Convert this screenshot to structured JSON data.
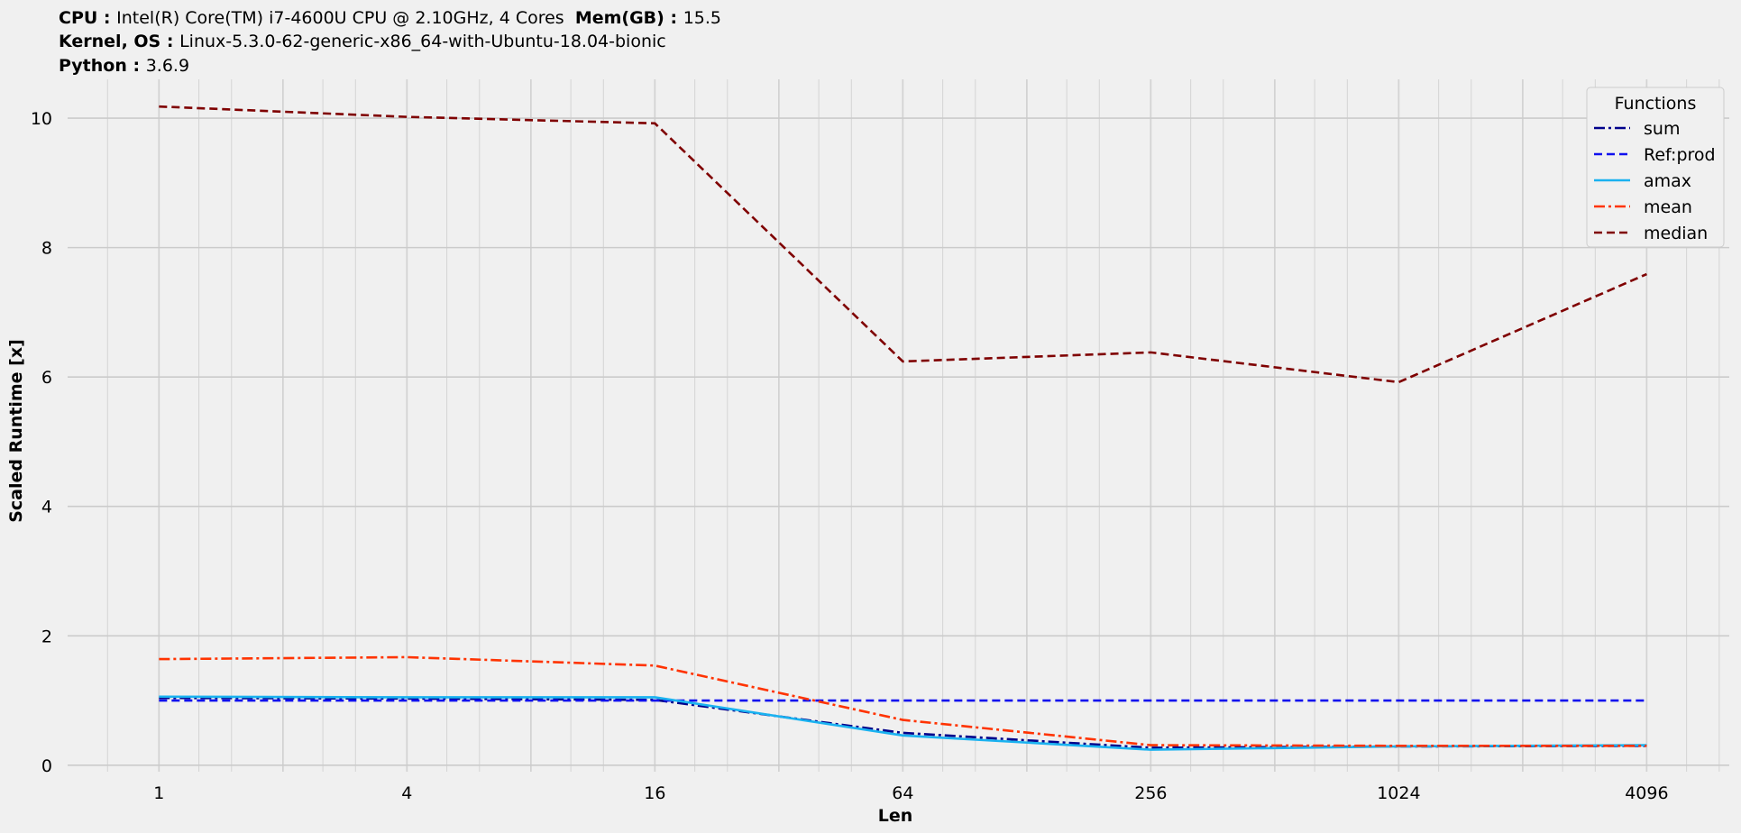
{
  "header": {
    "cpu_label": "CPU",
    "cpu_value": "Intel(R) Core(TM) i7-4600U CPU @ 2.10GHz, 4 Cores",
    "mem_label": "Mem(GB)",
    "mem_value": "15.5",
    "kernel_label": "Kernel, OS",
    "kernel_value": "Linux-5.3.0-62-generic-x86_64-with-Ubuntu-18.04-bionic",
    "python_label": "Python",
    "python_value": "3.6.9"
  },
  "chart_data": {
    "type": "line",
    "xlabel": "Len",
    "ylabel": "Scaled Runtime [x]",
    "xscale": "log2",
    "xlim": [
      0.6,
      6500
    ],
    "ylim": [
      -0.1,
      10.6
    ],
    "xticks": [
      1,
      4,
      16,
      64,
      256,
      1024,
      4096
    ],
    "xtick_labels": [
      "1",
      "4",
      "16",
      "64",
      "256",
      "1024",
      "4096"
    ],
    "yticks": [
      0,
      2,
      4,
      6,
      8,
      10
    ],
    "ytick_labels": [
      "0",
      "2",
      "4",
      "6",
      "8",
      "10"
    ],
    "grid": true,
    "legend_title": "Functions",
    "legend_position": "top-right",
    "x": [
      1,
      4,
      16,
      64,
      256,
      1024,
      4096
    ],
    "series": [
      {
        "name": "sum",
        "color": "#00008b",
        "dash": "dashdot",
        "values": [
          1.04,
          1.03,
          1.01,
          0.5,
          0.27,
          0.29,
          0.3
        ]
      },
      {
        "name": "Ref:prod",
        "color": "#1010ee",
        "dash": "dashed",
        "values": [
          1.0,
          1.0,
          1.0,
          1.0,
          1.0,
          1.0,
          1.0
        ]
      },
      {
        "name": "amax",
        "color": "#1ab2f0",
        "dash": "solid",
        "values": [
          1.06,
          1.05,
          1.05,
          0.46,
          0.24,
          0.29,
          0.31
        ]
      },
      {
        "name": "mean",
        "color": "#ff3300",
        "dash": "dashdot",
        "values": [
          1.64,
          1.67,
          1.54,
          0.7,
          0.31,
          0.3,
          0.3
        ]
      },
      {
        "name": "median",
        "color": "#7f0000",
        "dash": "dashed",
        "values": [
          10.18,
          10.02,
          9.92,
          6.24,
          6.38,
          5.92,
          7.59
        ]
      }
    ]
  }
}
